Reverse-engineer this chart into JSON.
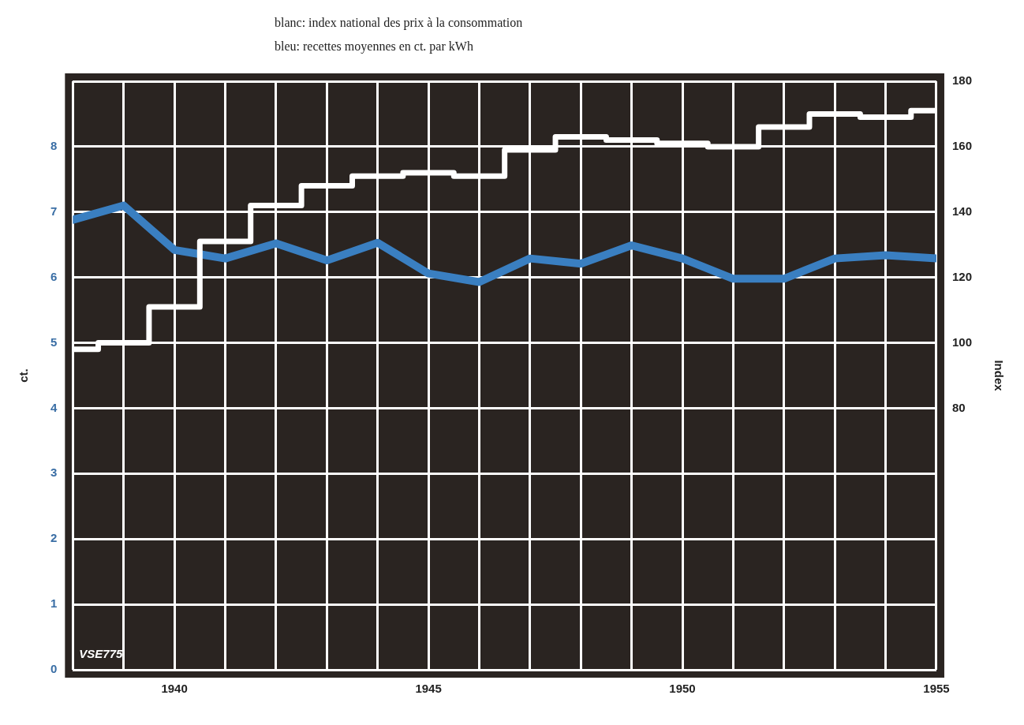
{
  "chart_data": {
    "type": "line",
    "ylabel": "ct.",
    "y2label": "Index",
    "annotations": [
      "blanc:  index national des prix à la consommation",
      "bleu:  recettes moyennes en ct. par kWh",
      "VSE775"
    ],
    "x": [
      1938,
      1939,
      1940,
      1941,
      1942,
      1943,
      1944,
      1945,
      1946,
      1947,
      1948,
      1949,
      1950,
      1951,
      1952,
      1953,
      1954,
      1955
    ],
    "series": [
      {
        "type": "step",
        "axis": "y2",
        "color": "#ffffff",
        "values": [
          98,
          100,
          111,
          131,
          142,
          148,
          151,
          152,
          151,
          159,
          163,
          162,
          161,
          160,
          166,
          170,
          169,
          171
        ]
      },
      {
        "type": "line",
        "color": "#3a7fc1",
        "values": [
          6.88,
          7.1,
          6.42,
          6.29,
          6.52,
          6.26,
          6.53,
          6.06,
          5.93,
          6.29,
          6.21,
          6.49,
          6.29,
          5.98,
          5.98,
          6.29,
          6.34,
          6.29
        ]
      }
    ],
    "xlim": [
      1938,
      1955
    ],
    "xticks": [
      {
        "value": 1938,
        "label": null
      },
      {
        "value": 1939,
        "label": null
      },
      1940,
      {
        "value": 1941,
        "label": null
      },
      {
        "value": 1942,
        "label": null
      },
      {
        "value": 1943,
        "label": null
      },
      {
        "value": 1944,
        "label": null
      },
      1945,
      {
        "value": 1946,
        "label": null
      },
      {
        "value": 1947,
        "label": null
      },
      {
        "value": 1948,
        "label": null
      },
      {
        "value": 1949,
        "label": null
      },
      1950,
      {
        "value": 1951,
        "label": null
      },
      {
        "value": 1952,
        "label": null
      },
      {
        "value": 1953,
        "label": null
      },
      {
        "value": 1954,
        "label": null
      },
      1955
    ],
    "ylim": [
      0,
      9
    ],
    "yticks": [
      0,
      1,
      2,
      3,
      4,
      5,
      6,
      7,
      8,
      {
        "value": 9,
        "label": null
      }
    ],
    "y2lim": [
      0,
      180
    ],
    "y2ticks": [
      80,
      100,
      120,
      140,
      160,
      180
    ],
    "grid": true,
    "legend": false,
    "marker": "none",
    "line_style": "solid"
  }
}
